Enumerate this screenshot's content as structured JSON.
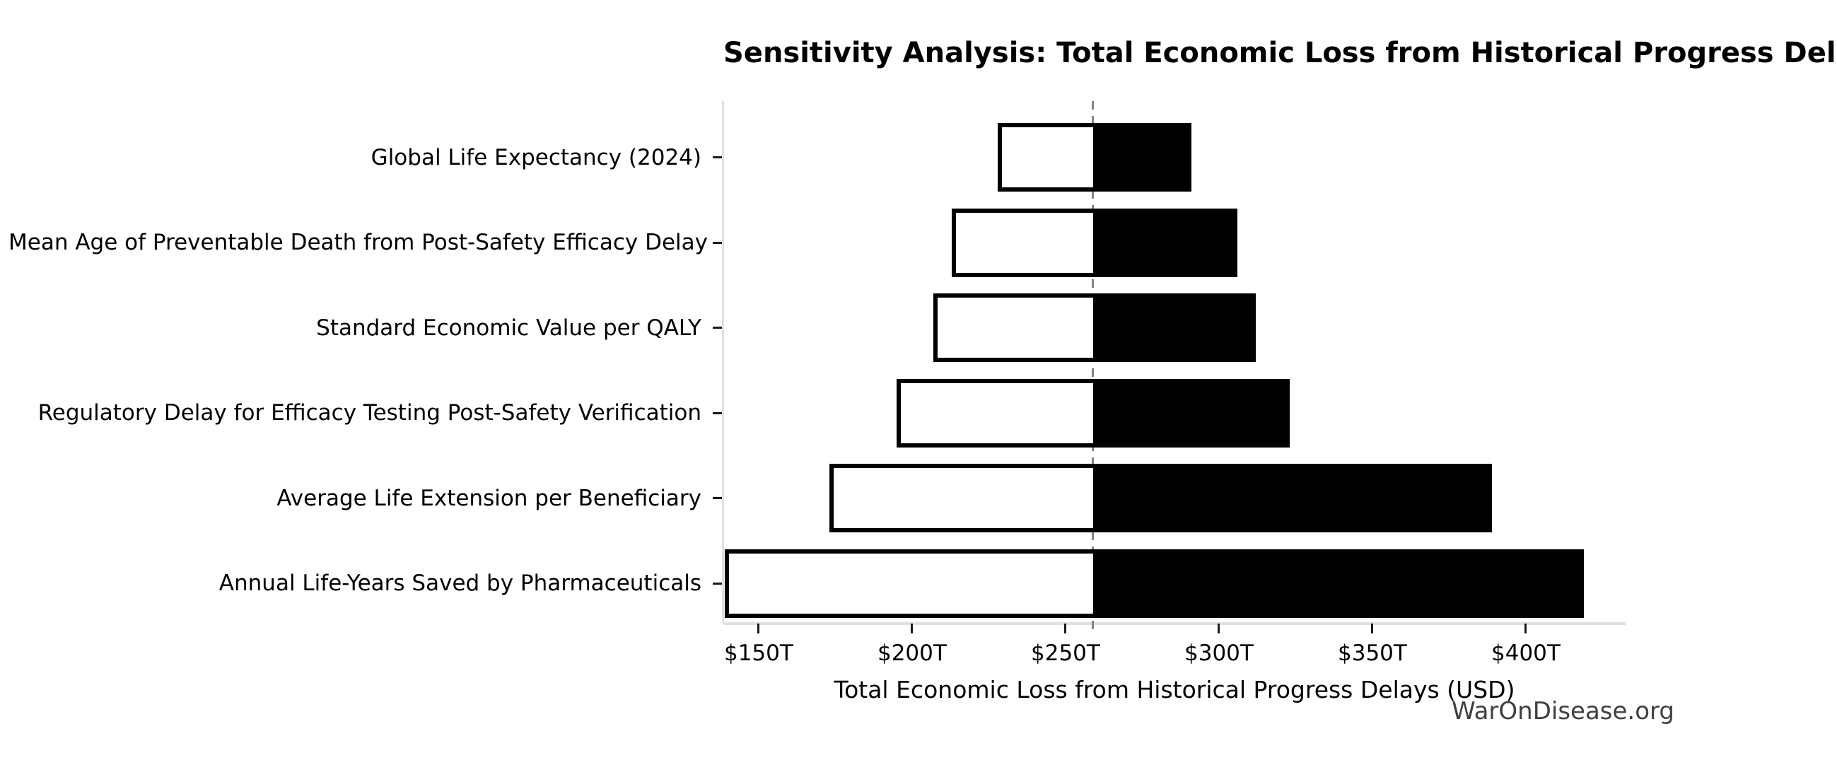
{
  "title": "Sensitivity Analysis: Total Economic Loss from Historical Progress Delays",
  "watermark": "WarOnDisease.org",
  "chart_data": {
    "type": "bar",
    "subtype": "tornado",
    "orientation": "horizontal",
    "title": "Sensitivity Analysis: Total Economic Loss from Historical Progress Delays",
    "xlabel": "Total Economic Loss from Historical Progress Delays (USD)",
    "ylabel": "",
    "unit": "trillion USD",
    "baseline_value": 259,
    "xlim": [
      138.5,
      432.5
    ],
    "grid": false,
    "legend": "none",
    "xticks": [
      {
        "value": 150,
        "label": "$150T"
      },
      {
        "value": 200,
        "label": "$200T"
      },
      {
        "value": 250,
        "label": "$250T"
      },
      {
        "value": 300,
        "label": "$300T"
      },
      {
        "value": 350,
        "label": "$350T"
      },
      {
        "value": 400,
        "label": "$400T"
      }
    ],
    "categories": [
      "Global Life Expectancy (2024)",
      "Mean Age of Preventable Death from Post-Safety Efficacy Delay",
      "Standard Economic Value per QALY",
      "Regulatory Delay for Efficacy Testing Post-Safety Verification",
      "Average Life Extension per Beneficiary",
      "Annual Life-Years Saved by Pharmaceuticals"
    ],
    "series": [
      {
        "name": "low",
        "values": [
          228,
          213,
          207,
          195,
          173,
          139
        ]
      },
      {
        "name": "high",
        "values": [
          291,
          306,
          312,
          323,
          389,
          419
        ]
      }
    ],
    "bars": [
      {
        "label": "Global Life Expectancy (2024)",
        "low": 228,
        "high": 291
      },
      {
        "label": "Mean Age of Preventable Death from Post-Safety Efficacy Delay",
        "low": 213,
        "high": 306
      },
      {
        "label": "Standard Economic Value per QALY",
        "low": 207,
        "high": 312
      },
      {
        "label": "Regulatory Delay for Efficacy Testing Post-Safety Verification",
        "low": 195,
        "high": 323
      },
      {
        "label": "Average Life Extension per Beneficiary",
        "low": 173,
        "high": 389
      },
      {
        "label": "Annual Life-Years Saved by Pharmaceuticals",
        "low": 139,
        "high": 419
      }
    ]
  },
  "colors": {
    "background": "#ffffff",
    "bar_low_fill": "#ffffff",
    "bar_high_fill": "#000000",
    "bar_border": "#000000",
    "baseline_line": "#848484",
    "axis_spine": "#e0e0e0",
    "tick_mark": "#1a1a1a",
    "text": "#000000",
    "watermark_text": "#3f3f3f"
  }
}
